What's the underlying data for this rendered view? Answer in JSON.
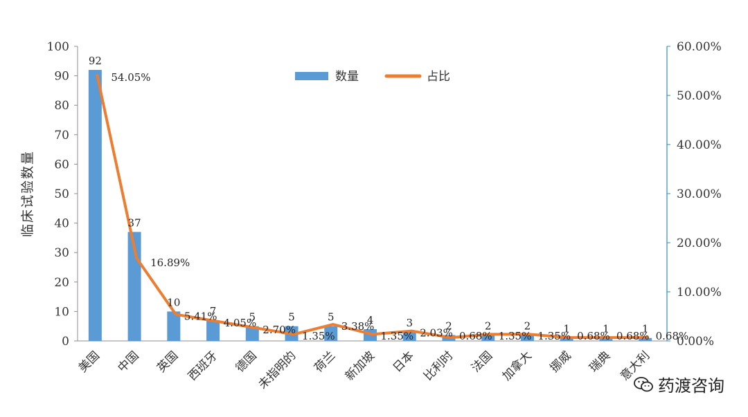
{
  "chart_data": {
    "type": "bar+line",
    "categories": [
      "美国",
      "中国",
      "英国",
      "西班牙",
      "德国",
      "未指明的",
      "荷兰",
      "新加坡",
      "日本",
      "比利时",
      "法国",
      "加拿大",
      "挪威",
      "瑞典",
      "意大利"
    ],
    "series": [
      {
        "name": "数量",
        "type": "bar",
        "axis": "left",
        "color": "#5b9bd5",
        "values": [
          92,
          37,
          10,
          7,
          5,
          5,
          5,
          4,
          3,
          2,
          2,
          2,
          1,
          1,
          1
        ]
      },
      {
        "name": "占比",
        "type": "line",
        "axis": "right",
        "color": "#ed7d31",
        "values": [
          54.05,
          16.89,
          5.41,
          4.05,
          2.7,
          1.35,
          3.38,
          1.35,
          2.03,
          0.68,
          1.35,
          1.35,
          0.68,
          0.68,
          0.68
        ]
      }
    ],
    "bar_labels": [
      "92",
      "37",
      "10",
      "7",
      "5",
      "5",
      "5",
      "4",
      "3",
      "2",
      "2",
      "2",
      "1",
      "1",
      "1"
    ],
    "line_labels": [
      "54.05%",
      "16.89%",
      "5.41%",
      "4.05%",
      "2.70%",
      "1.35%",
      "3.38%",
      "1.35%",
      "2.03%",
      "0.68%",
      "1.35%",
      "1.35%",
      "0.68%",
      "0.68%",
      "0.68%"
    ],
    "ylabel": "临床试验数量",
    "ylim": [
      0,
      100
    ],
    "yticks": [
      "0",
      "10",
      "20",
      "30",
      "40",
      "50",
      "60",
      "70",
      "80",
      "90",
      "100"
    ],
    "y2lim": [
      0,
      60
    ],
    "y2ticks": [
      "0.00%",
      "10.00%",
      "20.00%",
      "30.00%",
      "40.00%",
      "50.00%",
      "60.00%"
    ],
    "legend_position": "top-center",
    "grid": false
  },
  "watermark": {
    "text": "药渡咨询",
    "icon": "wechat-icon"
  }
}
